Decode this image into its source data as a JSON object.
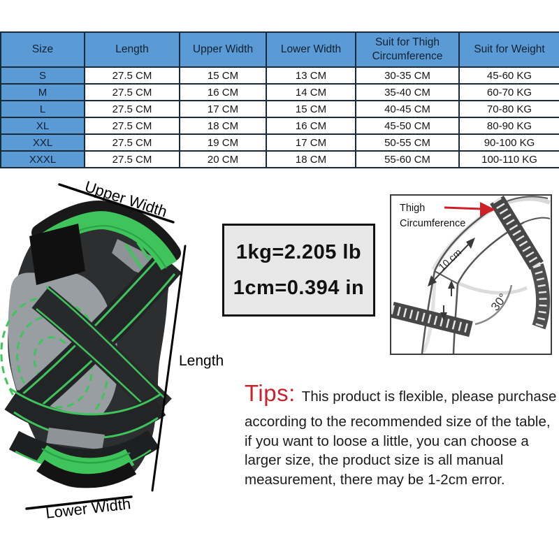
{
  "size_table": {
    "headers": [
      "Size",
      "Length",
      "Upper Width",
      "Lower Width",
      "Suit for Thigh Circumference",
      "Suit for Weight"
    ],
    "rows": [
      [
        "S",
        "27.5 CM",
        "15 CM",
        "13 CM",
        "30-35 CM",
        "45-60 KG"
      ],
      [
        "M",
        "27.5 CM",
        "16 CM",
        "14 CM",
        "35-40 CM",
        "60-70 KG"
      ],
      [
        "L",
        "27.5 CM",
        "17 CM",
        "15 CM",
        "40-45 CM",
        "70-80 KG"
      ],
      [
        "XL",
        "27.5 CM",
        "18 CM",
        "16 CM",
        "45-50 CM",
        "80-90 KG"
      ],
      [
        "XXL",
        "27.5 CM",
        "19 CM",
        "17 CM",
        "50-55 CM",
        "90-100 KG"
      ],
      [
        "XXXL",
        "27.5 CM",
        "20 CM",
        "18 CM",
        "55-60 CM",
        "100-110 KG"
      ]
    ]
  },
  "product": {
    "upper_width_label": "Upper Width",
    "length_label": "Length",
    "lower_width_label": "Lower Width"
  },
  "conversion_box": {
    "line1": "1kg=2.205 lb",
    "line2": "1cm=0.394 in"
  },
  "measurement_diagram": {
    "thigh_label_line1": "Thigh",
    "thigh_label_line2": "Circumference",
    "distance_label": "10 cm",
    "angle_label": "30°"
  },
  "tips": {
    "heading": "Tips:",
    "lines": [
      "This product is flexible, please purchase",
      "according to the recommended size of the table,",
      "if you want to loose a little, you can choose a",
      "larger size, the product size is all manual",
      "measurement, there may be 1-2cm error."
    ]
  },
  "colors": {
    "table_header_blue": "#5b9bd5",
    "table_border_navy": "#1b2a38",
    "accent_green": "#3ec45b",
    "tips_red": "#c8232e",
    "diagram_arrow_red": "#cd2027"
  }
}
